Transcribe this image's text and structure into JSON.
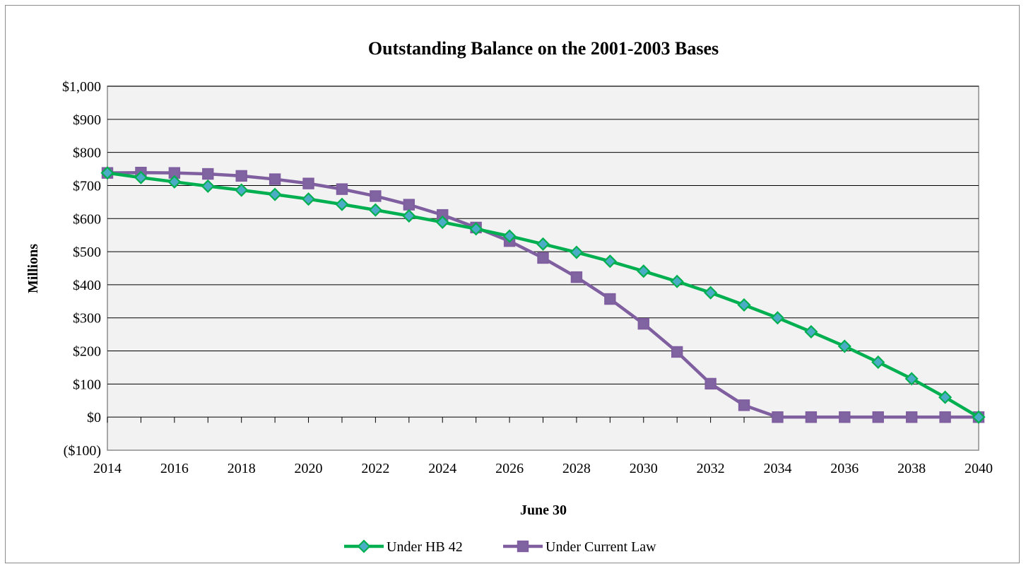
{
  "chart_data": {
    "type": "line",
    "title": "Outstanding Balance on the 2001-2003 Bases",
    "xlabel": "June 30",
    "ylabel": "Millions",
    "x": [
      2014,
      2015,
      2016,
      2017,
      2018,
      2019,
      2020,
      2021,
      2022,
      2023,
      2024,
      2025,
      2026,
      2027,
      2028,
      2029,
      2030,
      2031,
      2032,
      2033,
      2034,
      2035,
      2036,
      2037,
      2038,
      2039,
      2040
    ],
    "xlim": [
      2014,
      2040
    ],
    "ylim": [
      -100,
      1000
    ],
    "x_tick_labels": [
      "2014",
      "2016",
      "2018",
      "2020",
      "2022",
      "2024",
      "2026",
      "2028",
      "2030",
      "2032",
      "2034",
      "2036",
      "2038",
      "2040"
    ],
    "y_ticks": [
      -100,
      0,
      100,
      200,
      300,
      400,
      500,
      600,
      700,
      800,
      900,
      1000
    ],
    "y_tick_labels": [
      "($100)",
      "$0",
      "$100",
      "$200",
      "$300",
      "$400",
      "$500",
      "$600",
      "$700",
      "$800",
      "$900",
      "$1,000"
    ],
    "grid": "horizontal",
    "legend_position": "bottom",
    "series": [
      {
        "name": "Under HB 42",
        "color": "#00b050",
        "marker": "diamond",
        "values": [
          738,
          724,
          711,
          698,
          686,
          673,
          659,
          643,
          626,
          608,
          589,
          569,
          547,
          523,
          498,
          471,
          441,
          410,
          376,
          339,
          300,
          258,
          214,
          166,
          116,
          60,
          0
        ]
      },
      {
        "name": "Under Current Law",
        "color": "#7f5f9f",
        "marker": "square",
        "values": [
          738,
          739,
          738,
          735,
          729,
          719,
          706,
          689,
          668,
          642,
          611,
          573,
          532,
          481,
          423,
          357,
          282,
          197,
          101,
          36,
          0,
          0,
          0,
          0,
          0,
          0,
          0
        ]
      }
    ]
  }
}
